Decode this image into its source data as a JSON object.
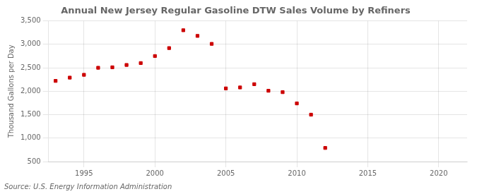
{
  "chart_data": {
    "type": "scatter",
    "title": "Annual New Jersey Regular Gasoline DTW Sales Volume by Refiners",
    "ylabel": "Thousand Gallons per Day",
    "source": "Source: U.S. Energy Information Administration",
    "x": [
      1993,
      1994,
      1995,
      1996,
      1997,
      1998,
      1999,
      2000,
      2001,
      2002,
      2003,
      2004,
      2005,
      2006,
      2007,
      2008,
      2009,
      2010,
      2011,
      2012
    ],
    "values": [
      2220,
      2290,
      2350,
      2500,
      2510,
      2560,
      2600,
      2750,
      2920,
      3300,
      3180,
      3010,
      2060,
      2080,
      2150,
      2010,
      1980,
      1740,
      1500,
      790
    ],
    "color": "#cc0000",
    "marker": "square",
    "xlim": [
      1992.5,
      2022
    ],
    "xticks": [
      1995,
      2000,
      2005,
      2010,
      2015,
      2020
    ],
    "ylim": [
      500,
      3500
    ],
    "yticks": [
      500,
      {
        "value": 1000,
        "label": "1,000"
      },
      {
        "value": 1500,
        "label": "1,500"
      },
      {
        "value": 2000,
        "label": "2,000"
      },
      {
        "value": 2500,
        "label": "2,500"
      },
      {
        "value": 3000,
        "label": "3,000"
      },
      {
        "value": 3500,
        "label": "3,500"
      }
    ],
    "grid": true
  }
}
